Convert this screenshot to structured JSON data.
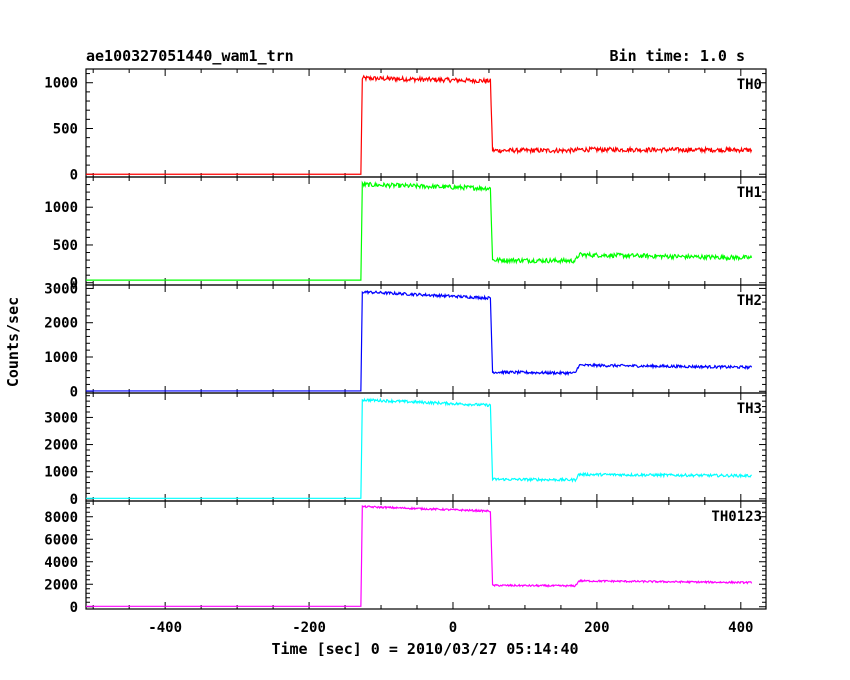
{
  "chart_data": {
    "type": "line",
    "title": "ae100327051440_wam1_trn",
    "subtitle": "Bin time: 1.0 s",
    "xlabel": "Time [sec] 0 = 2010/03/27 05:14:40",
    "ylabel": "Counts/sec",
    "xlim": [
      -510,
      435
    ],
    "x_ticks": [
      -400,
      -200,
      0,
      200,
      400
    ],
    "grid": false,
    "legend": "none",
    "x_breakpoints": [
      -510,
      -128,
      -126,
      52,
      55,
      170,
      175,
      415
    ],
    "panels": [
      {
        "name": "TH0",
        "color": "#ff0000",
        "ylim": [
          -30,
          1150
        ],
        "y_ticks": [
          0,
          500,
          1000
        ],
        "values": [
          0,
          0,
          1050,
          1020,
          260,
          260,
          270,
          265
        ],
        "noise": 25
      },
      {
        "name": "TH1",
        "color": "#00ff00",
        "ylim": [
          -30,
          1400
        ],
        "y_ticks": [
          0,
          500,
          1000
        ],
        "values": [
          35,
          35,
          1300,
          1250,
          300,
          290,
          370,
          330
        ],
        "noise": 30
      },
      {
        "name": "TH2",
        "color": "#0000ff",
        "ylim": [
          -50,
          3100
        ],
        "y_ticks": [
          0,
          1000,
          2000,
          3000
        ],
        "values": [
          10,
          10,
          2900,
          2720,
          560,
          530,
          760,
          700
        ],
        "noise": 40
      },
      {
        "name": "TH3",
        "color": "#00ffff",
        "ylim": [
          -80,
          3900
        ],
        "y_ticks": [
          0,
          1000,
          2000,
          3000
        ],
        "values": [
          20,
          20,
          3650,
          3450,
          720,
          700,
          900,
          850
        ],
        "noise": 50
      },
      {
        "name": "TH0123",
        "color": "#ff00ff",
        "ylim": [
          -200,
          9400
        ],
        "y_ticks": [
          0,
          2000,
          4000,
          6000,
          8000
        ],
        "values": [
          40,
          40,
          8900,
          8500,
          1900,
          1850,
          2300,
          2150
        ],
        "noise": 80
      }
    ]
  }
}
